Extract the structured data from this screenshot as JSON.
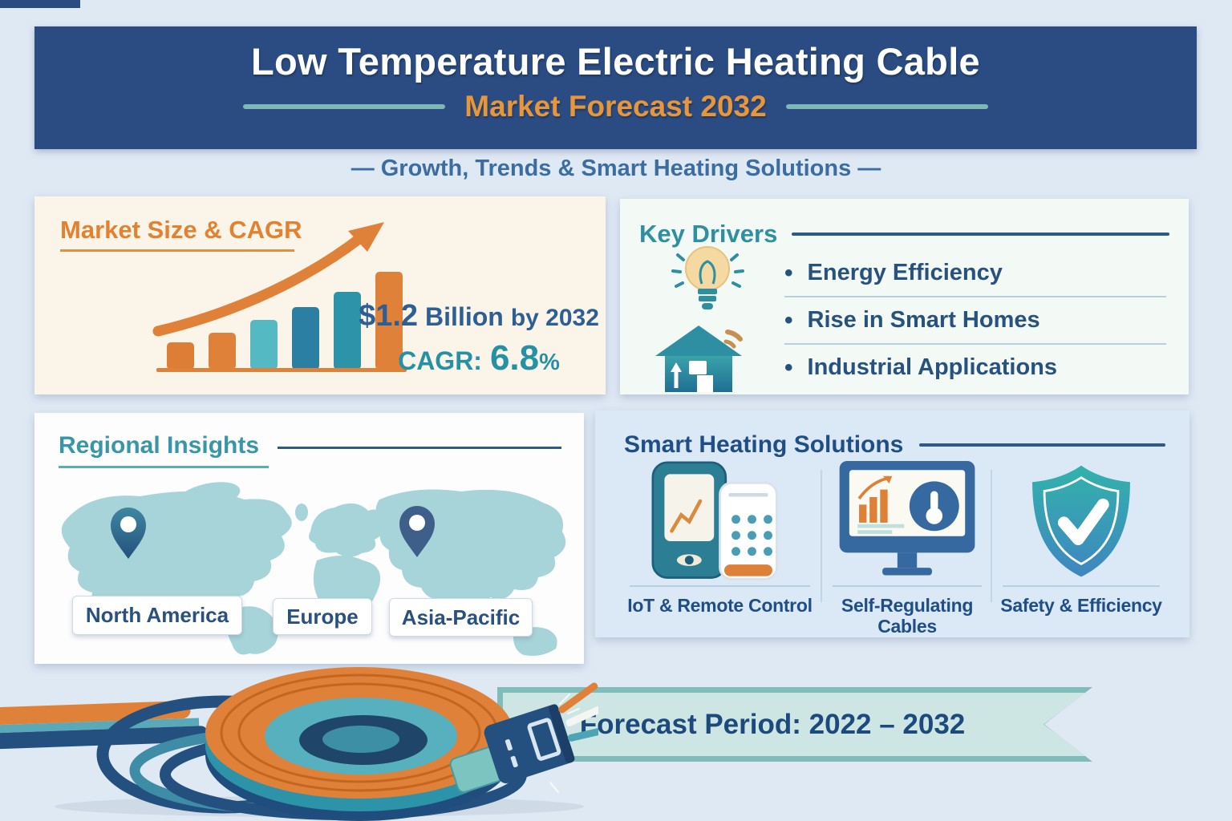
{
  "header": {
    "title": "Low Temperature Electric Heating Cable",
    "forecast": "Market Forecast 2032",
    "tagline": "—  Growth, Trends & Smart Heating Solutions  —"
  },
  "market": {
    "title": "Market Size & CAGR",
    "value_highlight": "$1.2",
    "value_bold": "Billion",
    "value_rest": "by 2032",
    "cagr_label": "CAGR:",
    "cagr_value": "6.8",
    "cagr_unit": "%"
  },
  "chart_data": {
    "type": "bar",
    "title": "Market Size & CAGR growth bars (illustrative, no axis labels shown)",
    "categories": [
      "bar-1",
      "bar-2",
      "bar-3",
      "bar-4",
      "bar-5",
      "bar-6"
    ],
    "values": [
      34,
      46,
      62,
      78,
      97,
      122
    ],
    "unit": "relative illustrative height (px)",
    "bar_colors": [
      "#dd7d36",
      "#e0813a",
      "#55b9c4",
      "#2a7fa3",
      "#2d93a8",
      "#e0813a"
    ],
    "trend_arrow": true,
    "trend_arrow_color": "#e0813a",
    "annotations": [
      "$1.2 Billion by 2032",
      "CAGR: 6.8%"
    ],
    "grid": false,
    "legend": false
  },
  "key_drivers": {
    "title": "Key Drivers",
    "bullet": "•",
    "items": [
      {
        "label": "Energy Efficiency"
      },
      {
        "label": "Rise in Smart Homes"
      },
      {
        "label": "Industrial Applications"
      }
    ]
  },
  "regional": {
    "title": "Regional Insights",
    "regions": [
      {
        "label": "North America"
      },
      {
        "label": "Europe"
      },
      {
        "label": "Asia-Pacific"
      }
    ]
  },
  "solutions": {
    "title": "Smart Heating Solutions",
    "items": [
      {
        "label": "IoT & Remote Control",
        "icon": "smartphone-remote-icon"
      },
      {
        "label": "Self-Regulating Cables",
        "icon": "monitor-thermostat-icon"
      },
      {
        "label": "Safety & Efficiency",
        "icon": "shield-check-icon"
      }
    ]
  },
  "ribbon": {
    "text": "Forecast Period: 2022 – 2032"
  },
  "colors": {
    "page_bg": "#dfe9f4",
    "header_bg": "#2a4c82",
    "accent_orange": "#e8963c",
    "teal": "#2e8fa2",
    "navy_text": "#27517f",
    "card_market_bg": "#fbf5e9",
    "card_drivers_bg": "#f3f9f4",
    "card_regional_bg": "#fdfdfe",
    "card_solutions_bg": "#dbe9f6",
    "map_fill": "#a7d4d9",
    "ribbon_bg": "#cde6e3",
    "ribbon_border": "#7fbcba"
  }
}
